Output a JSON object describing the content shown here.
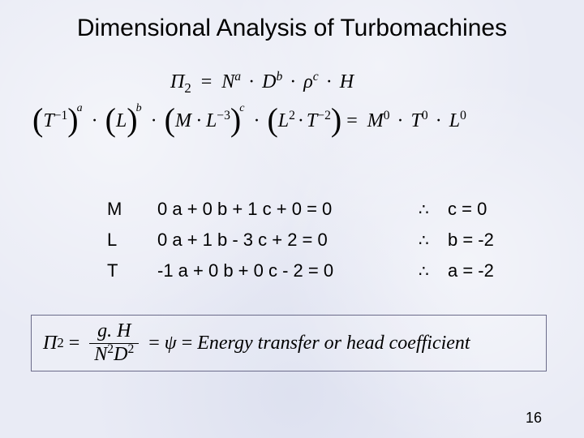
{
  "title": "Dimensional Analysis of Turbomachines",
  "page_number": "16",
  "colors": {
    "background": "#e9ebf5",
    "text": "#000000",
    "box_border": "#6b6b8a"
  },
  "eq1": {
    "lhs": "Π",
    "lhs_sub": "2",
    "terms": [
      {
        "base": "N",
        "exp": "a"
      },
      {
        "base": "D",
        "exp": "b"
      },
      {
        "base": "ρ",
        "exp": "c"
      },
      {
        "base": "H",
        "exp": ""
      }
    ]
  },
  "eq2": {
    "groups": [
      {
        "inner_base": "T",
        "inner_exp": "−1",
        "outer_exp": "a"
      },
      {
        "inner_base": "L",
        "inner_exp": "",
        "outer_exp": "b"
      },
      {
        "inner_base": "M · L",
        "inner_exp": "−3",
        "outer_exp": "c"
      },
      {
        "inner_base": "L",
        "inner_exp": "2",
        "inner_base2": "T",
        "inner_exp2": "−2",
        "outer_exp": ""
      }
    ],
    "rhs": [
      {
        "base": "M",
        "exp": "0"
      },
      {
        "base": "T",
        "exp": "0"
      },
      {
        "base": "L",
        "exp": "0"
      }
    ]
  },
  "system": {
    "rows": [
      {
        "dim": "M",
        "eq": "0 a + 0 b + 1 c + 0 = 0",
        "res": "c = 0"
      },
      {
        "dim": "L",
        "eq": "0 a + 1 b - 3 c + 2 = 0",
        "res": "b = -2"
      },
      {
        "dim": "T",
        "eq": "-1 a + 0 b + 0 c - 2 = 0",
        "res": "a = -2"
      }
    ],
    "therefore": "∴"
  },
  "result": {
    "lhs": "Π",
    "lhs_sub": "2",
    "frac_num": "g. H",
    "frac_den_a": "N",
    "frac_den_a_exp": "2",
    "frac_den_b": "D",
    "frac_den_b_exp": "2",
    "psi": "ψ",
    "desc": "Energy transfer or head coefficient"
  }
}
